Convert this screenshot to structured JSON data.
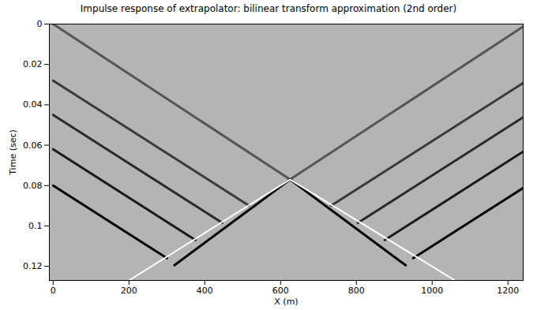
{
  "chart_data": {
    "type": "line",
    "title": "Impulse response of extrapolator: bilinear transform approximation (2nd order)",
    "x_label": "X (m)",
    "y_label": "Time (sec)",
    "xlim": [
      -10,
      1240
    ],
    "ylim": [
      0,
      0.127
    ],
    "xticks": [
      0,
      200,
      400,
      600,
      800,
      1000,
      1200
    ],
    "yticks": [
      0,
      0.02,
      0.04,
      0.06,
      0.08,
      0.1,
      0.12
    ],
    "series": [
      {
        "color": "#555555",
        "x": [
          0,
          625
        ],
        "values": [
          0,
          0.077
        ]
      },
      {
        "color": "#3a3a3a",
        "x": [
          0,
          517
        ],
        "values": [
          0.028,
          0.09
        ]
      },
      {
        "color": "#2a2a2a",
        "x": [
          0,
          446
        ],
        "values": [
          0.045,
          0.0985
        ]
      },
      {
        "color": "#1a1a1a",
        "x": [
          0,
          375
        ],
        "values": [
          0.062,
          0.107
        ]
      },
      {
        "color": "#000000",
        "x": [
          0,
          300
        ],
        "values": [
          0.08,
          0.116
        ]
      },
      {
        "color": "#555555",
        "x": [
          1250,
          625
        ],
        "values": [
          0,
          0.077
        ]
      },
      {
        "color": "#3a3a3a",
        "x": [
          1250,
          733
        ],
        "values": [
          0.028,
          0.09
        ]
      },
      {
        "color": "#2a2a2a",
        "x": [
          1250,
          804
        ],
        "values": [
          0.045,
          0.0985
        ]
      },
      {
        "color": "#1a1a1a",
        "x": [
          1250,
          875
        ],
        "values": [
          0.062,
          0.107
        ]
      },
      {
        "color": "#000000",
        "x": [
          1250,
          950
        ],
        "values": [
          0.08,
          0.116
        ]
      },
      {
        "color": "#000000",
        "x": [
          320,
          625,
          930
        ],
        "values": [
          0.1195,
          0.077,
          0.1195
        ]
      },
      {
        "color": "#ffffff",
        "x": [
          200,
          625,
          1060
        ],
        "values": [
          0.127,
          0.077,
          0.127
        ]
      }
    ]
  }
}
